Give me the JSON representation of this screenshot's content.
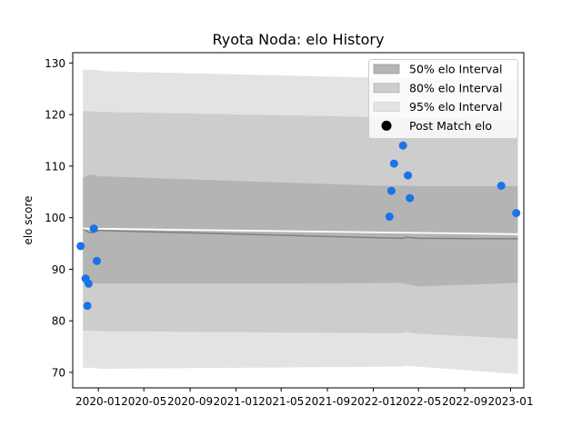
{
  "chart_data": {
    "type": "area",
    "title": "Ryota Noda: elo History",
    "xlabel": "",
    "ylabel": "elo score",
    "xlim": [
      "2019-10-25",
      "2023-02-05"
    ],
    "ylim": [
      67,
      132
    ],
    "x_ticks": [
      "2020-01",
      "2020-05",
      "2020-09",
      "2021-01",
      "2021-05",
      "2021-09",
      "2022-01",
      "2022-05",
      "2022-09",
      "2023-01"
    ],
    "y_ticks": [
      70,
      80,
      90,
      100,
      110,
      120,
      130
    ],
    "grid": false,
    "legend_position": "top-right",
    "legend": [
      "50% elo Interval",
      "80% elo Interval",
      "95% elo Interval",
      "Post Match elo"
    ],
    "colors": {
      "band_50": "#b4b4b4",
      "band_80": "#cdcdcd",
      "band_95": "#e3e3e3",
      "median_line": "#808080",
      "trend_line": "#ffffff",
      "points": "#1a73e8"
    },
    "bands": {
      "x": [
        "2019-11-21",
        "2019-12-05",
        "2019-12-19",
        "2020-01-06",
        "2020-01-15",
        "2022-01-20",
        "2022-03-15",
        "2022-04-01",
        "2022-05-01",
        "2023-01-01",
        "2023-01-20"
      ],
      "median": [
        97.9,
        97.2,
        97.1,
        97.6,
        97.5,
        96.1,
        96.0,
        96.2,
        96.0,
        95.9,
        95.9
      ],
      "p50": {
        "lower": [
          87.2,
          87.3,
          87.3,
          87.2,
          87.2,
          87.3,
          87.4,
          87.1,
          86.7,
          87.3,
          87.4
        ],
        "upper": [
          107.6,
          108.3,
          108.3,
          108.0,
          108.0,
          106.2,
          106.2,
          106.2,
          106.1,
          106.1,
          106.1
        ]
      },
      "p80": {
        "lower": [
          78.1,
          78.1,
          78.1,
          78.0,
          78.0,
          77.6,
          77.6,
          77.8,
          77.5,
          76.6,
          76.5
        ]
      },
      "p95": {
        "lower": [
          70.9,
          70.9,
          70.9,
          70.7,
          70.7,
          71.1,
          71.1,
          71.3,
          71.1,
          69.8,
          69.7
        ]
      }
    },
    "band80_upper": {
      "x": [
        "2019-11-21",
        "2020-01-15",
        "2023-01-20"
      ],
      "y": [
        120.7,
        120.5,
        119.0
      ]
    },
    "band95_upper": {
      "x": [
        "2019-11-21",
        "2019-12-25",
        "2020-01-15",
        "2023-01-20"
      ],
      "y": [
        128.7,
        128.7,
        128.4,
        126.5
      ]
    },
    "trend_line": {
      "x": [
        "2019-11-21",
        "2023-01-20"
      ],
      "y": [
        97.9,
        96.8
      ]
    },
    "points": {
      "name": "Post Match elo",
      "x": [
        "2019-11-15",
        "2019-11-28",
        "2019-12-03",
        "2019-12-06",
        "2019-12-20",
        "2019-12-28",
        "2022-02-13",
        "2022-02-18",
        "2022-02-25",
        "2022-03-21",
        "2022-04-03",
        "2022-04-08",
        "2022-12-07",
        "2023-01-16"
      ],
      "y": [
        94.5,
        88.2,
        82.9,
        87.2,
        97.9,
        91.6,
        100.2,
        105.2,
        110.5,
        114.0,
        108.2,
        103.8,
        106.2,
        100.9
      ]
    }
  }
}
